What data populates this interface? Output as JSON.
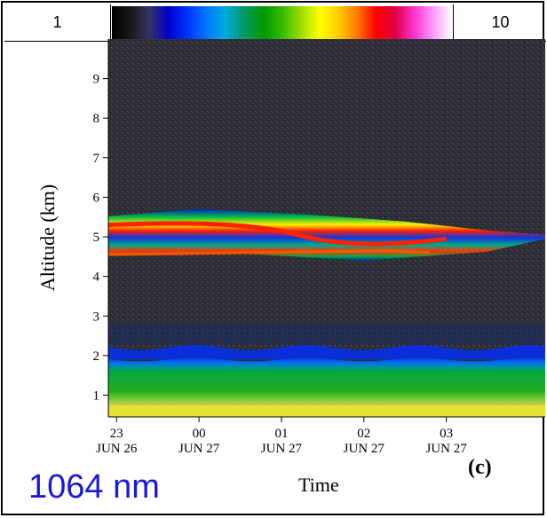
{
  "colorbar": {
    "min_label": "1",
    "max_label": "10",
    "colors": [
      "#000000",
      "#1a1a1a",
      "#333366",
      "#0000cc",
      "#0033ff",
      "#0077ff",
      "#00aadd",
      "#009966",
      "#009900",
      "#33bb00",
      "#99dd00",
      "#ffff00",
      "#ffcc00",
      "#ff7700",
      "#ff0000",
      "#dd0044",
      "#ff33cc",
      "#ff99ff",
      "#ffffff"
    ]
  },
  "chart_data": {
    "type": "heatmap",
    "xlabel": "Time",
    "ylabel": "Altitude (km)",
    "ylim": [
      0.45,
      10
    ],
    "xlim_hours": [
      22.9,
      28.2
    ],
    "yticks": [
      1,
      2,
      3,
      4,
      5,
      6,
      7,
      8,
      9
    ],
    "xticks": [
      {
        "hour": "23",
        "date": "JUN 26"
      },
      {
        "hour": "00",
        "date": "JUN 27"
      },
      {
        "hour": "01",
        "date": "JUN 27"
      },
      {
        "hour": "02",
        "date": "JUN 27"
      },
      {
        "hour": "03",
        "date": "JUN 27"
      }
    ],
    "features": [
      {
        "layer": "near-surface",
        "altitude_km": [
          0.45,
          0.75
        ],
        "intensity": "yellow"
      },
      {
        "layer": "boundary layer",
        "altitude_km": [
          0.75,
          1.9
        ],
        "intensity": "green"
      },
      {
        "layer": "aerosol top",
        "altitude_km": [
          1.9,
          2.2
        ],
        "intensity": "blue"
      },
      {
        "layer": "elevated smoke",
        "altitude_km": [
          4.4,
          5.7
        ],
        "intensity": "red-yellow-green"
      }
    ]
  },
  "caption": "1064 nm",
  "panel_label": "(c)"
}
